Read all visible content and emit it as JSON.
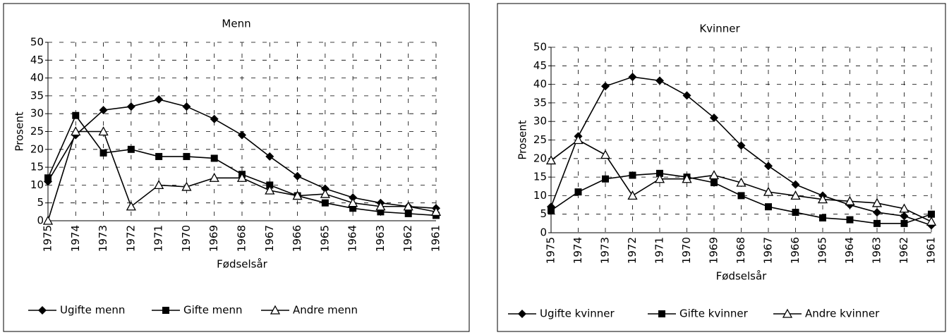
{
  "chart_data": [
    {
      "type": "line",
      "title": "Menn",
      "x_label": "Fødselsår",
      "y_label": "Prosent",
      "categories": [
        "1975",
        "1974",
        "1973",
        "1972",
        "1971",
        "1970",
        "1969",
        "1968",
        "1967",
        "1966",
        "1965",
        "1964",
        "1963",
        "1962",
        "1961"
      ],
      "series": [
        {
          "name": "Ugifte menn",
          "color": "#000000",
          "marker": "diamond",
          "values": [
            11,
            24,
            31,
            32,
            34,
            32,
            28.5,
            24,
            18,
            12.5,
            9,
            6.5,
            5,
            4,
            3.5
          ]
        },
        {
          "name": "Gifte menn",
          "color": "#000000",
          "marker": "square",
          "values": [
            12,
            29.5,
            19,
            20,
            18,
            18,
            17.5,
            13,
            10,
            7,
            5,
            3.5,
            2.5,
            2,
            1.5
          ]
        },
        {
          "name": "Andre menn",
          "color": "#000000",
          "marker": "triangle",
          "values": [
            0,
            25,
            25,
            4,
            10,
            9.5,
            12,
            12,
            8.5,
            7,
            7.5,
            5,
            4,
            4,
            2.5
          ]
        }
      ],
      "ylim": [
        0,
        50
      ],
      "yticks": [
        0,
        5,
        10,
        15,
        20,
        25,
        30,
        35,
        40,
        45,
        50
      ],
      "grid": true,
      "legend": "bottom"
    },
    {
      "type": "line",
      "title": "Kvinner",
      "x_label": "Fødselsår",
      "y_label": "Prosent",
      "categories": [
        "1975",
        "1974",
        "1973",
        "1972",
        "1971",
        "1970",
        "1969",
        "1968",
        "1967",
        "1966",
        "1965",
        "1964",
        "1963",
        "1962",
        "1961"
      ],
      "series": [
        {
          "name": "Ugifte kvinner",
          "color": "#000000",
          "marker": "diamond",
          "values": [
            7,
            26,
            39.5,
            42,
            41,
            37,
            31,
            23.5,
            18,
            13,
            10,
            7.5,
            5.5,
            4.5,
            2
          ]
        },
        {
          "name": "Gifte kvinner",
          "color": "#000000",
          "marker": "square",
          "values": [
            6,
            11,
            14.5,
            15.5,
            16,
            15,
            13.5,
            10,
            7,
            5.5,
            4,
            3.5,
            2.5,
            2.5,
            5
          ]
        },
        {
          "name": "Andre kvinner",
          "color": "#000000",
          "marker": "triangle",
          "values": [
            19.5,
            25,
            21,
            10,
            14.5,
            14.5,
            15.5,
            13.5,
            11,
            10,
            9,
            8.5,
            8,
            6.5,
            3
          ]
        }
      ],
      "ylim": [
        0,
        50
      ],
      "yticks": [
        0,
        5,
        10,
        15,
        20,
        25,
        30,
        35,
        40,
        45,
        50
      ],
      "grid": true,
      "legend": "bottom"
    }
  ]
}
